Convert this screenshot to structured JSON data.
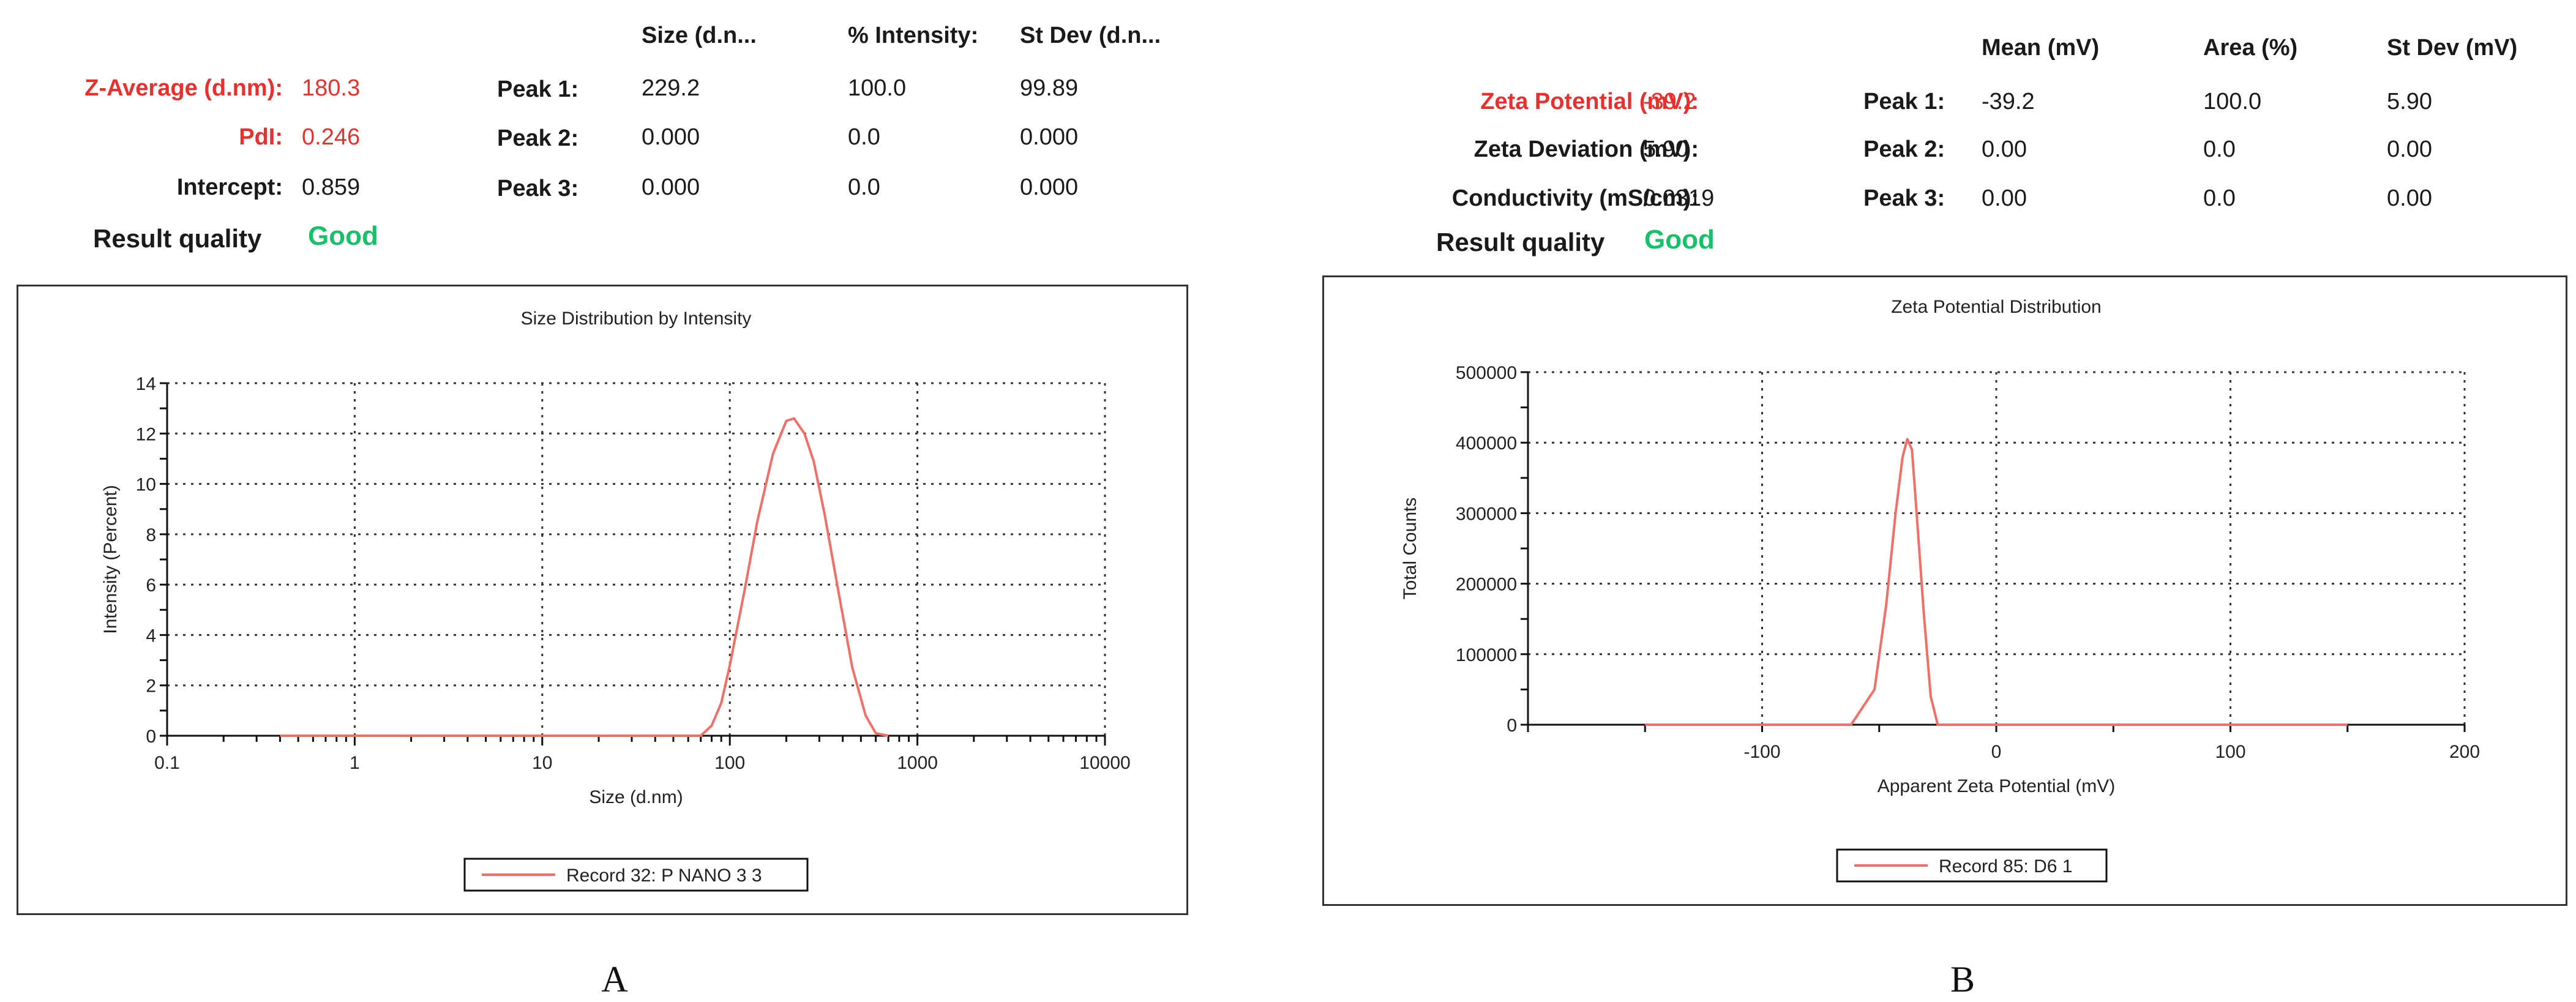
{
  "panel_a": {
    "summary": {
      "z_average": {
        "label": "Z-Average (d.nm):",
        "value": "180.3"
      },
      "pdi": {
        "label": "PdI:",
        "value": "0.246"
      },
      "intercept": {
        "label": "Intercept:",
        "value": "0.859"
      },
      "result_quality": {
        "label": "Result quality",
        "value": "Good"
      }
    },
    "peaks_table": {
      "headers": [
        "Size (d.n...",
        "% Intensity:",
        "St Dev (d.n..."
      ],
      "rows": [
        {
          "label": "Peak 1:",
          "cells": [
            "229.2",
            "100.0",
            "99.89"
          ]
        },
        {
          "label": "Peak 2:",
          "cells": [
            "0.000",
            "0.0",
            "0.000"
          ]
        },
        {
          "label": "Peak 3:",
          "cells": [
            "0.000",
            "0.0",
            "0.000"
          ]
        }
      ]
    },
    "caption": "A"
  },
  "panel_b": {
    "summary": {
      "zeta_potential": {
        "label": "Zeta Potential (mV):",
        "value": "-39.2"
      },
      "zeta_deviation": {
        "label": "Zeta Deviation (mV):",
        "value": "5.90"
      },
      "conductivity": {
        "label": "Conductivity (mS/cm):",
        "value": "0.0319"
      },
      "result_quality": {
        "label": "Result quality",
        "value": "Good"
      }
    },
    "peaks_table": {
      "headers": [
        "Mean (mV)",
        "Area (%)",
        "St Dev (mV)"
      ],
      "rows": [
        {
          "label": "Peak 1:",
          "cells": [
            "-39.2",
            "100.0",
            "5.90"
          ]
        },
        {
          "label": "Peak 2:",
          "cells": [
            "0.00",
            "0.0",
            "0.00"
          ]
        },
        {
          "label": "Peak 3:",
          "cells": [
            "0.00",
            "0.0",
            "0.00"
          ]
        }
      ]
    },
    "caption": "B"
  },
  "colors": {
    "series": "#f07068",
    "highlight_red": "#e8312f",
    "good_green": "#18c06a",
    "grid": "#333333"
  },
  "chart_data": [
    {
      "type": "line",
      "title": "Size Distribution by Intensity",
      "xlabel": "Size (d.nm)",
      "ylabel": "Intensity (Percent)",
      "xscale": "log",
      "xlim": [
        0.1,
        10000
      ],
      "ylim": [
        0,
        14
      ],
      "xticks": [
        0.1,
        1,
        10,
        100,
        1000,
        10000
      ],
      "xtick_labels": [
        "0.1",
        "1",
        "10",
        "100",
        "1000",
        "10000"
      ],
      "yticks": [
        0,
        2,
        4,
        6,
        8,
        10,
        12,
        14
      ],
      "ytick_labels": [
        "0",
        "2",
        "4",
        "6",
        "8",
        "10",
        "12",
        "14"
      ],
      "grid": true,
      "legend": "bottom-center",
      "series": [
        {
          "name": "Record 32: P NANO 3 3",
          "x": [
            0.4,
            1,
            10,
            50,
            70,
            80,
            90,
            100,
            120,
            140,
            170,
            200,
            220,
            250,
            280,
            320,
            380,
            450,
            530,
            600,
            700
          ],
          "y": [
            0,
            0,
            0,
            0,
            0,
            0.4,
            1.3,
            2.8,
            5.8,
            8.5,
            11.2,
            12.5,
            12.6,
            12.0,
            10.9,
            8.8,
            5.7,
            2.7,
            0.8,
            0.1,
            0
          ]
        }
      ]
    },
    {
      "type": "line",
      "title": "Zeta Potential Distribution",
      "xlabel": "Apparent Zeta Potential (mV)",
      "ylabel": "Total Counts",
      "xlim": [
        -200,
        200
      ],
      "ylim": [
        0,
        500000
      ],
      "xticks": [
        -100,
        0,
        100,
        200
      ],
      "xtick_labels": [
        "-100",
        "0",
        "100",
        "200"
      ],
      "yticks": [
        0,
        100000,
        200000,
        300000,
        400000,
        500000
      ],
      "ytick_labels": [
        "0",
        "100000",
        "200000",
        "300000",
        "400000",
        "500000"
      ],
      "grid": true,
      "legend": "bottom-center",
      "series": [
        {
          "name": "Record 85: D6 1",
          "x": [
            -150,
            -100,
            -62,
            -52,
            -47,
            -43,
            -40,
            -38,
            -36,
            -34,
            -31,
            -28,
            -25,
            0,
            50,
            100,
            150
          ],
          "y": [
            0,
            0,
            0,
            50000,
            170000,
            300000,
            380000,
            405000,
            390000,
            300000,
            160000,
            40000,
            0,
            0,
            0,
            0,
            0
          ]
        }
      ]
    }
  ]
}
